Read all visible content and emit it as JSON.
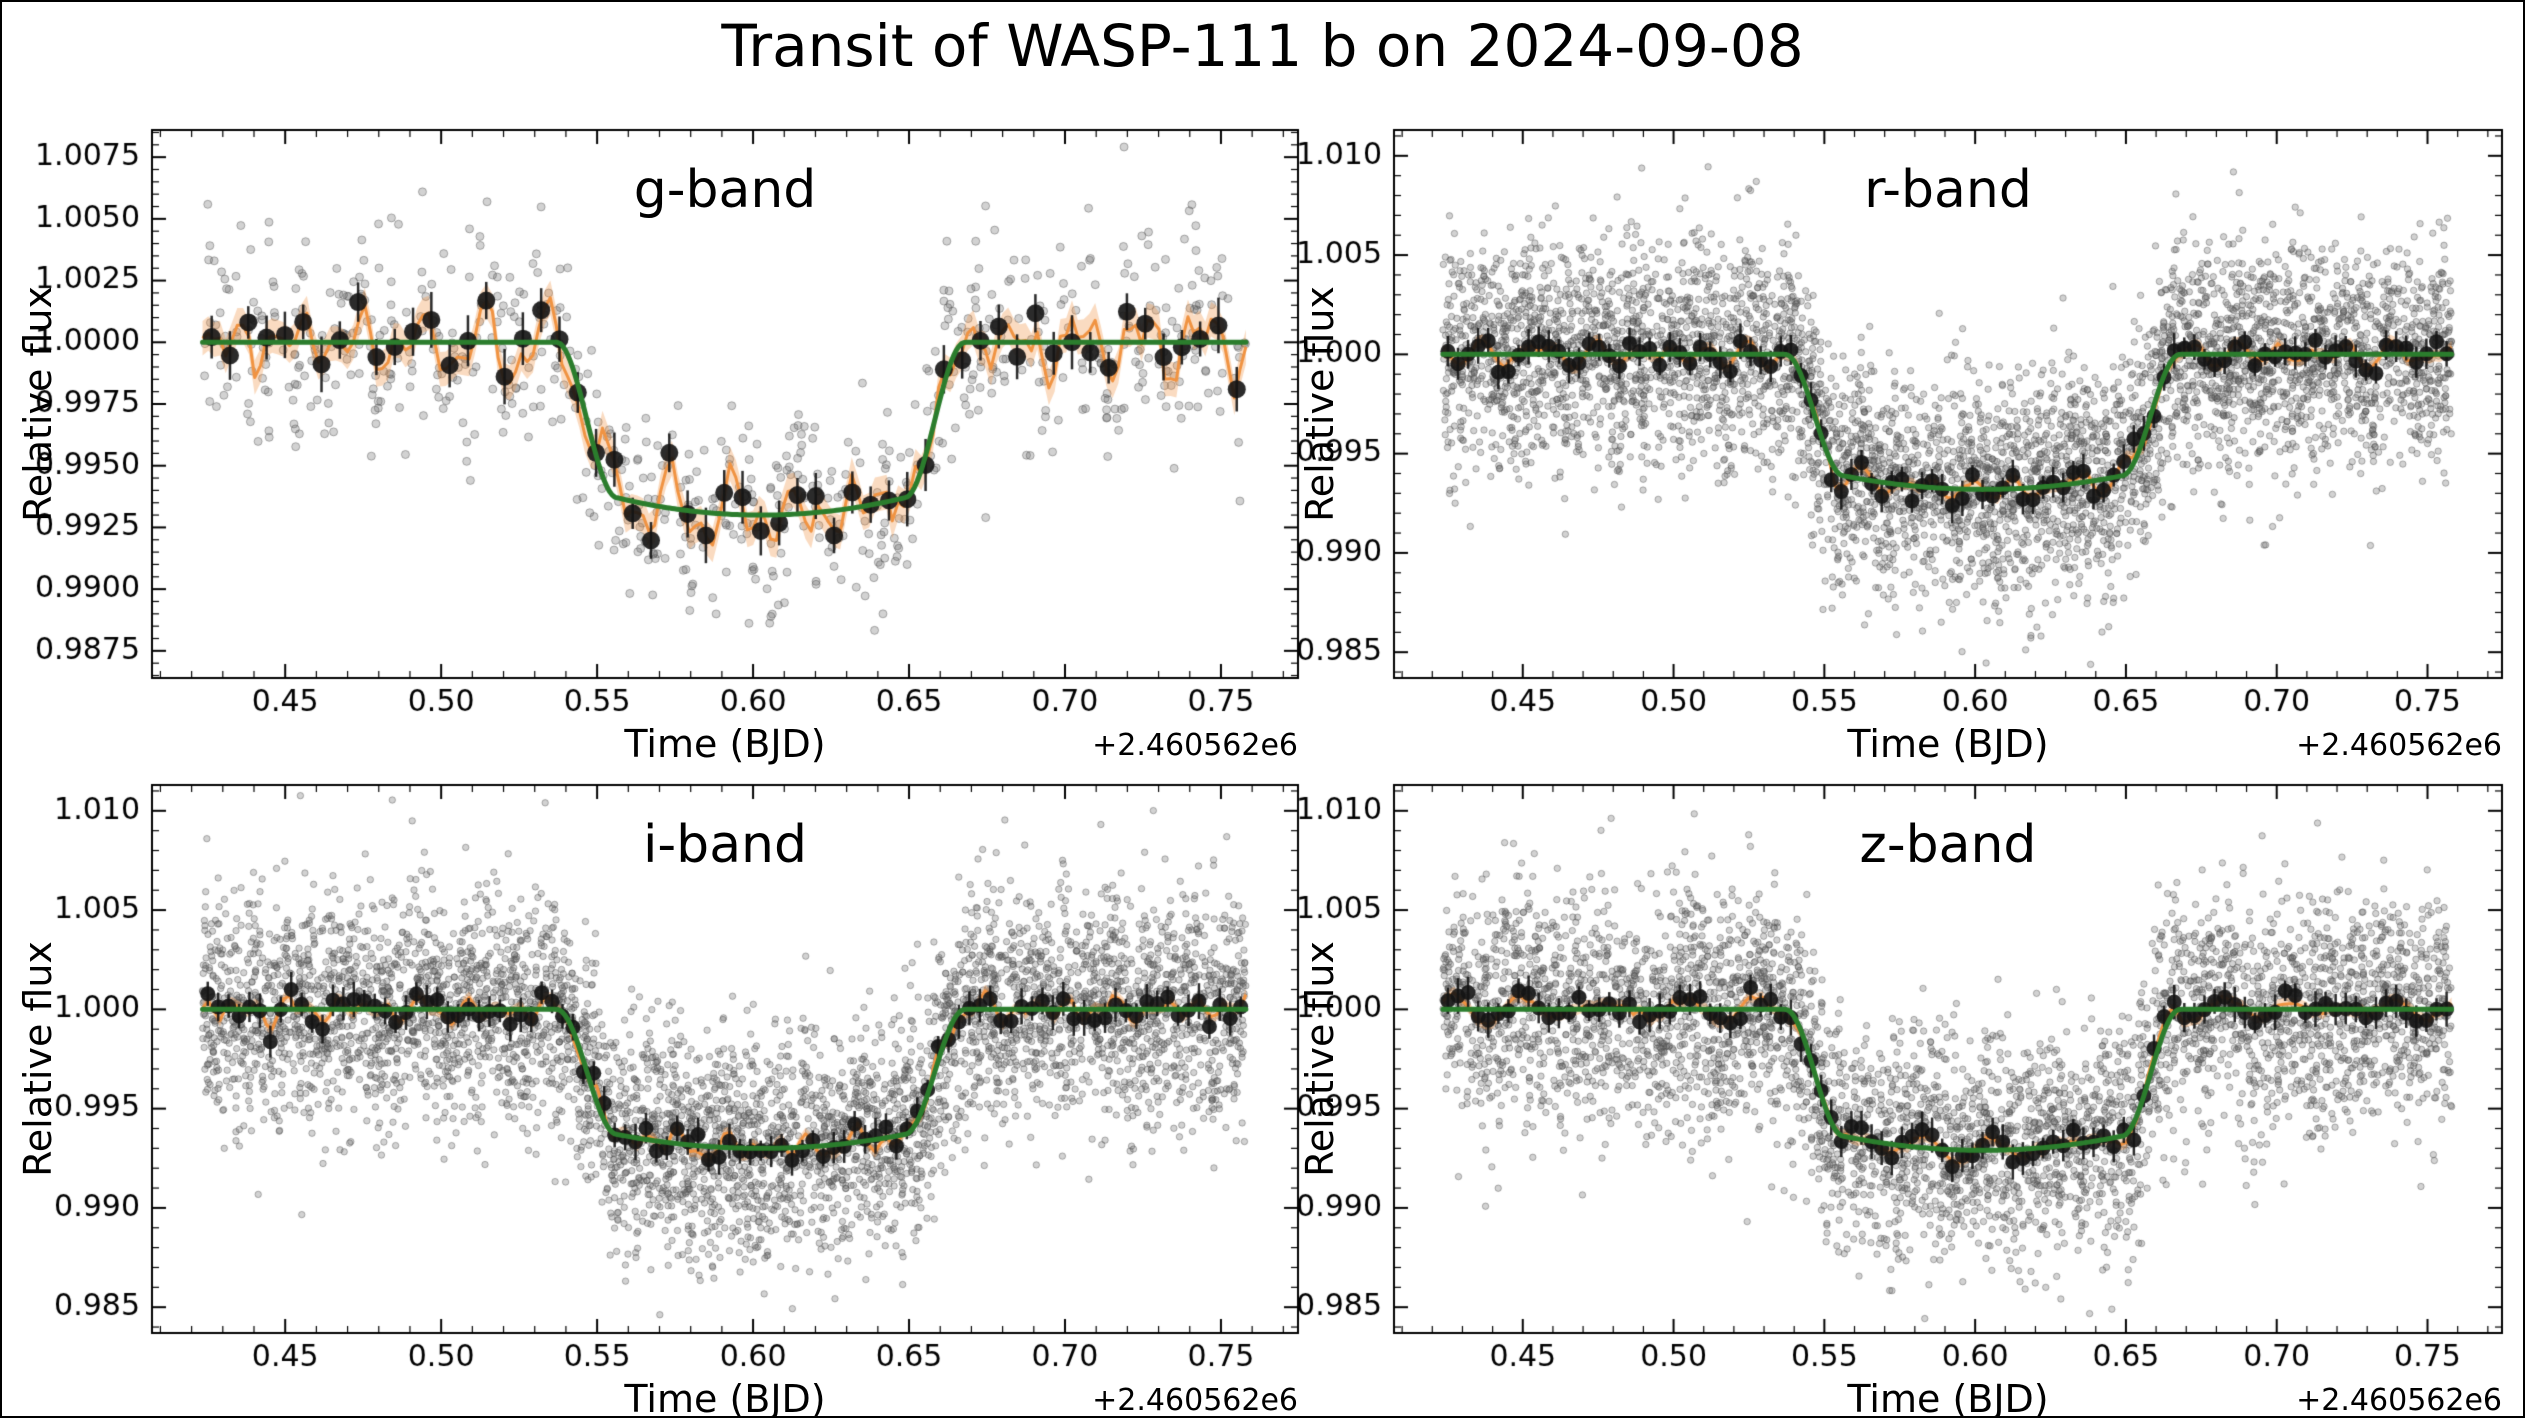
{
  "figure": {
    "title": "Transit of WASP-111 b on 2024-09-08",
    "background": "#ffffff",
    "border_color": "#000000"
  },
  "axis": {
    "xlabel": "Time (BJD)",
    "ylabel": "Relative flux",
    "offset_text": "+2.460562e6"
  },
  "colors": {
    "model_line": "#2b7d2d",
    "systematics_line": "#f09342",
    "systematics_band": "rgba(240,147,66,0.33)",
    "binned_points": "#141414",
    "scatter_fill": "rgba(105,105,105,0.30)",
    "scatter_edge": "rgba(70,70,70,0.40)",
    "text": "#000000"
  },
  "chart_data": [
    {
      "type": "scatter",
      "title": "g-band",
      "xlabel": "Time (BJD)",
      "ylabel": "Relative flux",
      "x_offset": "+2.460562e6",
      "xlim": [
        0.4073,
        0.7747
      ],
      "ylim": [
        0.9864,
        1.0086
      ],
      "xticks": [
        0.45,
        0.5,
        0.55,
        0.6,
        0.65,
        0.7,
        0.75
      ],
      "xtick_labels": [
        "0.45",
        "0.50",
        "0.55",
        "0.60",
        "0.65",
        "0.70",
        "0.75"
      ],
      "yticks": [
        0.9875,
        0.99,
        0.9925,
        0.995,
        0.9975,
        1.0,
        1.0025,
        1.005,
        1.0075
      ],
      "ytick_labels": [
        "0.9875",
        "0.9900",
        "0.9925",
        "0.9950",
        "0.9975",
        "1.0000",
        "1.0025",
        "1.0050",
        "1.0075"
      ],
      "x_minor_step": 0.01,
      "y_minor_step": 0.0005,
      "time_range": [
        0.4235,
        0.758
      ],
      "transit": {
        "t1": 0.537,
        "t2": 0.5565,
        "t3": 0.6485,
        "t4": 0.668,
        "depth": 0.007,
        "bottom_curvature": 0.1
      },
      "baseline_flux": 1.0,
      "n_scatter": 760,
      "noise_sigma": 0.00215,
      "n_bins": 57,
      "bin_error": 0.0009,
      "bin_jitter": 0.00045,
      "systematics_amplitude": 0.00055,
      "band_halfwidth": 0.0007,
      "line_jitter": 0.00028,
      "scatter_radius": 4.0,
      "bin_radius": 9.0,
      "seed": 11
    },
    {
      "type": "scatter",
      "title": "r-band",
      "xlabel": "Time (BJD)",
      "ylabel": "Relative flux",
      "x_offset": "+2.460562e6",
      "xlim": [
        0.4073,
        0.7747
      ],
      "ylim": [
        0.9837,
        1.0113
      ],
      "xticks": [
        0.45,
        0.5,
        0.55,
        0.6,
        0.65,
        0.7,
        0.75
      ],
      "xtick_labels": [
        "0.45",
        "0.50",
        "0.55",
        "0.60",
        "0.65",
        "0.70",
        "0.75"
      ],
      "yticks": [
        0.985,
        0.99,
        0.995,
        1.0,
        1.005,
        1.01
      ],
      "ytick_labels": [
        "0.985",
        "0.990",
        "0.995",
        "1.000",
        "1.005",
        "1.010"
      ],
      "x_minor_step": 0.01,
      "y_minor_step": 0.001,
      "time_range": [
        0.4235,
        0.758
      ],
      "transit": {
        "t1": 0.537,
        "t2": 0.5565,
        "t3": 0.6485,
        "t4": 0.668,
        "depth": 0.0068,
        "bottom_curvature": 0.1
      },
      "baseline_flux": 1.0,
      "n_scatter": 5200,
      "noise_sigma": 0.0028,
      "n_bins": 100,
      "bin_error": 0.0007,
      "bin_jitter": 0.00032,
      "systematics_amplitude": 0.00025,
      "band_halfwidth": 0.0003,
      "line_jitter": 0.0001,
      "scatter_radius": 3.2,
      "bin_radius": 7.5,
      "seed": 22
    },
    {
      "type": "scatter",
      "title": "i-band",
      "xlabel": "Time (BJD)",
      "ylabel": "Relative flux",
      "x_offset": "+2.460562e6",
      "xlim": [
        0.4073,
        0.7747
      ],
      "ylim": [
        0.9837,
        1.0113
      ],
      "xticks": [
        0.45,
        0.5,
        0.55,
        0.6,
        0.65,
        0.7,
        0.75
      ],
      "xtick_labels": [
        "0.45",
        "0.50",
        "0.55",
        "0.60",
        "0.65",
        "0.70",
        "0.75"
      ],
      "yticks": [
        0.985,
        0.99,
        0.995,
        1.0,
        1.005,
        1.01
      ],
      "ytick_labels": [
        "0.985",
        "0.990",
        "0.995",
        "1.000",
        "1.005",
        "1.010"
      ],
      "x_minor_step": 0.01,
      "y_minor_step": 0.001,
      "time_range": [
        0.4235,
        0.758
      ],
      "transit": {
        "t1": 0.537,
        "t2": 0.5565,
        "t3": 0.6485,
        "t4": 0.668,
        "depth": 0.007,
        "bottom_curvature": 0.1
      },
      "baseline_flux": 1.0,
      "n_scatter": 5200,
      "noise_sigma": 0.0028,
      "n_bins": 100,
      "bin_error": 0.0007,
      "bin_jitter": 0.00032,
      "systematics_amplitude": 0.00025,
      "band_halfwidth": 0.0003,
      "line_jitter": 0.0001,
      "scatter_radius": 3.2,
      "bin_radius": 7.5,
      "seed": 33
    },
    {
      "type": "scatter",
      "title": "z-band",
      "xlabel": "Time (BJD)",
      "ylabel": "Relative flux",
      "x_offset": "+2.460562e6",
      "xlim": [
        0.4073,
        0.7747
      ],
      "ylim": [
        0.9837,
        1.0113
      ],
      "xticks": [
        0.45,
        0.5,
        0.55,
        0.6,
        0.65,
        0.7,
        0.75
      ],
      "xtick_labels": [
        "0.45",
        "0.50",
        "0.55",
        "0.60",
        "0.65",
        "0.70",
        "0.75"
      ],
      "yticks": [
        0.985,
        0.99,
        0.995,
        1.0,
        1.005,
        1.01
      ],
      "ytick_labels": [
        "0.985",
        "0.990",
        "0.995",
        "1.000",
        "1.005",
        "1.010"
      ],
      "x_minor_step": 0.01,
      "y_minor_step": 0.001,
      "time_range": [
        0.4235,
        0.758
      ],
      "transit": {
        "t1": 0.537,
        "t2": 0.5565,
        "t3": 0.6485,
        "t4": 0.668,
        "depth": 0.0071,
        "bottom_curvature": 0.1
      },
      "baseline_flux": 1.0,
      "n_scatter": 4600,
      "noise_sigma": 0.0029,
      "n_bins": 100,
      "bin_error": 0.0007,
      "bin_jitter": 0.00032,
      "systematics_amplitude": 0.00025,
      "band_halfwidth": 0.0003,
      "line_jitter": 0.0001,
      "scatter_radius": 3.2,
      "bin_radius": 7.5,
      "seed": 44
    }
  ]
}
